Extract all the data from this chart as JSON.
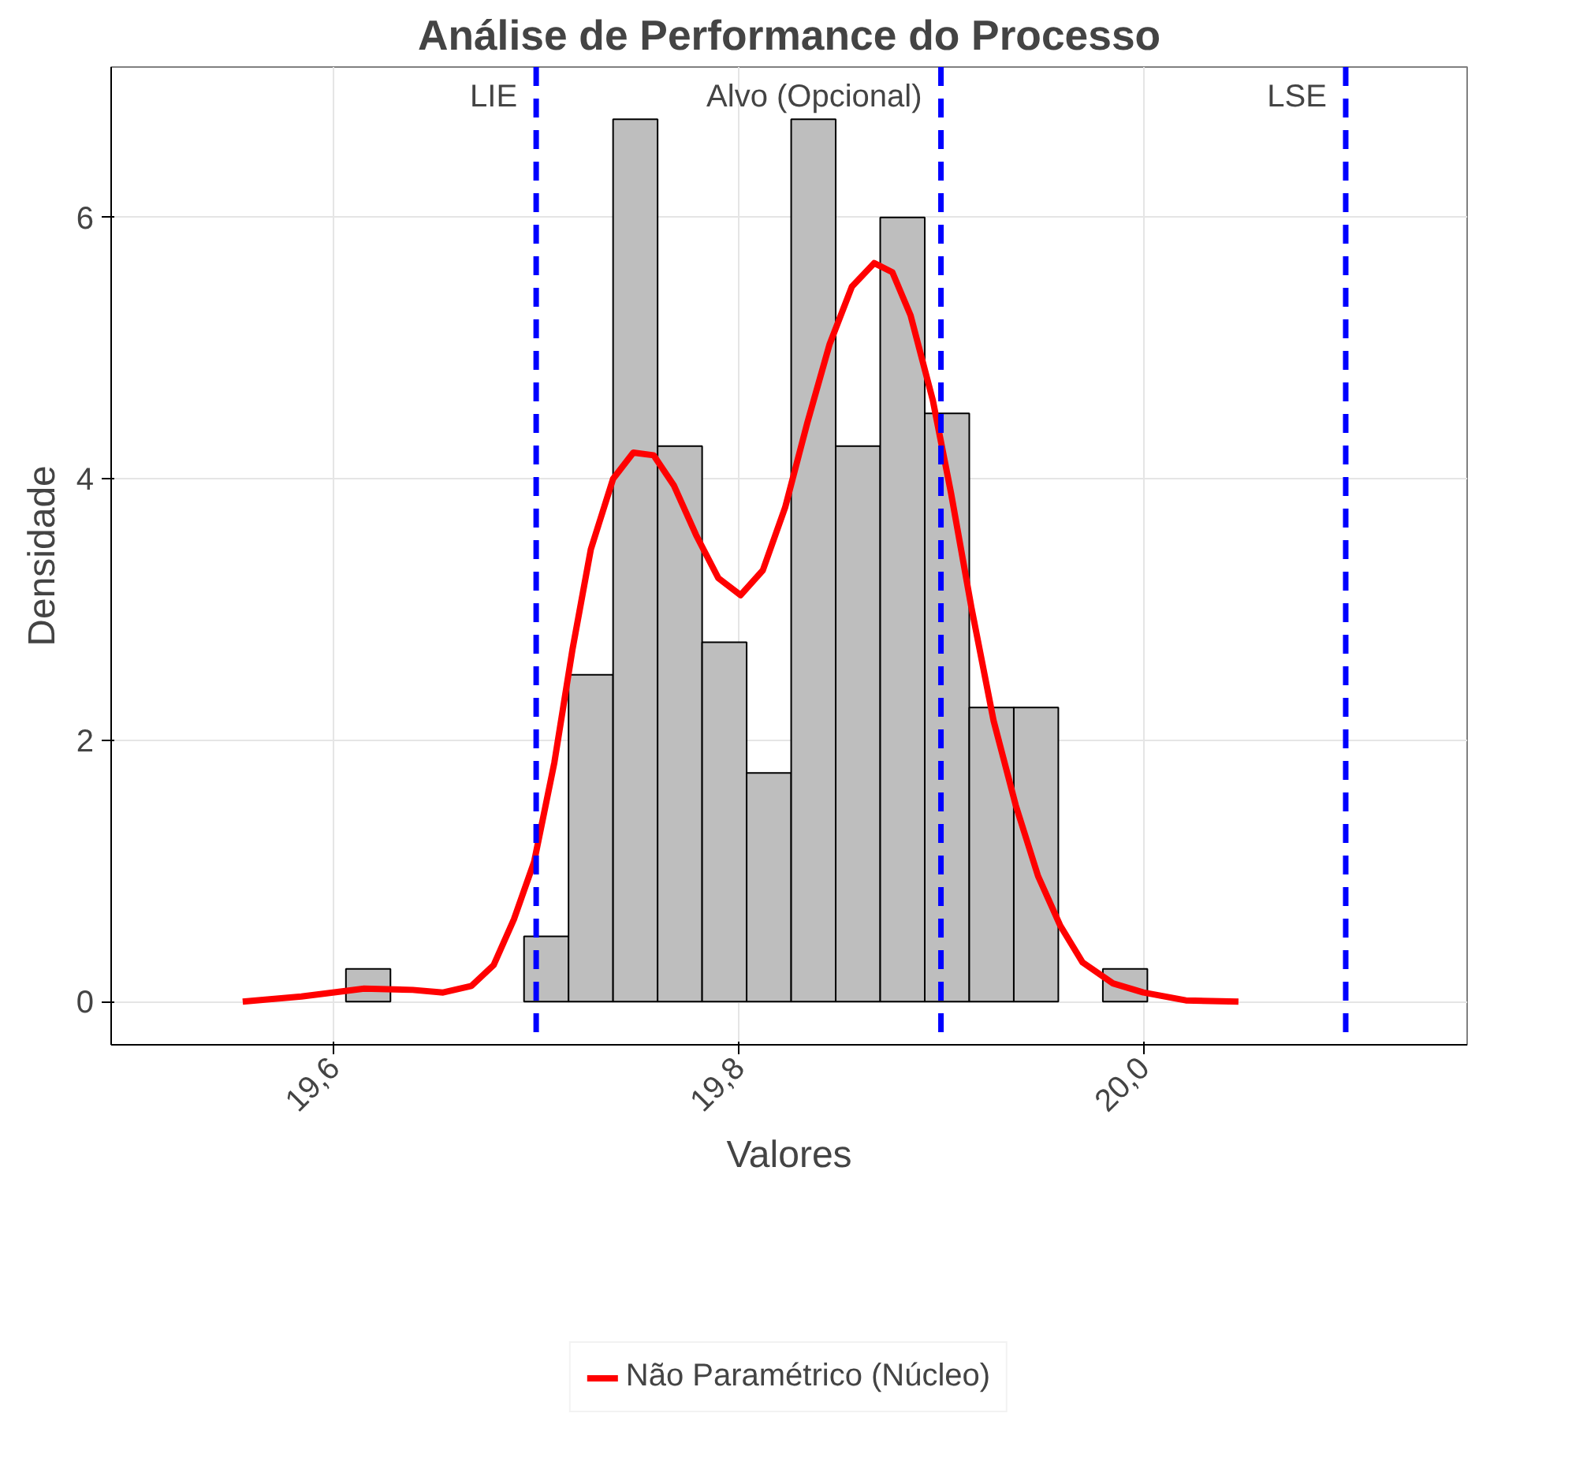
{
  "chart_data": {
    "type": "histogram",
    "title": "Análise de Performance do Processo",
    "xlabel": "Valores",
    "ylabel": "Densidade",
    "bins": [
      19.606,
      19.628,
      19.65,
      19.672,
      19.694,
      19.716,
      19.738,
      19.76,
      19.782,
      19.804,
      19.826,
      19.848,
      19.87,
      19.892,
      19.914,
      19.936,
      19.958,
      19.98,
      20.002
    ],
    "values": [
      0.25,
      0,
      0,
      0,
      0.5,
      2.5,
      6.75,
      4.25,
      2.75,
      1.75,
      6.75,
      4.25,
      6.0,
      4.5,
      2.25,
      2.25,
      0,
      0.25
    ],
    "color": "#bebebe",
    "series": [
      {
        "type": "line",
        "name": "Não Paramétrico (Núcleo)",
        "color": "#ff0000",
        "x": [
          19.555,
          19.584,
          19.615,
          19.639,
          19.654,
          19.668,
          19.679,
          19.689,
          19.699,
          19.709,
          19.718,
          19.727,
          19.738,
          19.748,
          19.758,
          19.768,
          19.779,
          19.79,
          19.801,
          19.812,
          19.823,
          19.834,
          19.845,
          19.856,
          19.867,
          19.876,
          19.885,
          19.896,
          19.905,
          19.915,
          19.926,
          19.937,
          19.948,
          19.959,
          19.97,
          19.985,
          20.0,
          20.021,
          20.047
        ],
        "values": [
          0,
          0.04,
          0.1,
          0.09,
          0.07,
          0.12,
          0.28,
          0.63,
          1.07,
          1.83,
          2.7,
          3.46,
          4.0,
          4.2,
          4.18,
          3.95,
          3.57,
          3.24,
          3.11,
          3.3,
          3.78,
          4.43,
          5.03,
          5.47,
          5.65,
          5.58,
          5.25,
          4.6,
          3.89,
          3.02,
          2.15,
          1.5,
          0.96,
          0.58,
          0.3,
          0.14,
          0.07,
          0.01,
          0
        ]
      }
    ],
    "ref_lines": [
      {
        "axis": "x",
        "value": 19.7,
        "label": "LIE",
        "color": "#0000ff",
        "line_style": "dashed"
      },
      {
        "axis": "x",
        "value": 19.9,
        "label": "Alvo (Opcional)",
        "color": "#0000ff",
        "line_style": "dashed"
      },
      {
        "axis": "x",
        "value": 20.1,
        "label": "LSE",
        "color": "#0000ff",
        "line_style": "dashed"
      }
    ],
    "xlim": [
      19.49,
      20.16
    ],
    "ylim": [
      -0.33,
      7.15
    ],
    "xticks": [
      {
        "value": 19.6,
        "label": "19,6"
      },
      {
        "value": 19.8,
        "label": "19,8"
      },
      {
        "value": 20.0,
        "label": "20,0"
      }
    ],
    "yticks": [
      0,
      2,
      4,
      6
    ],
    "grid": true,
    "legend": "bottom"
  }
}
